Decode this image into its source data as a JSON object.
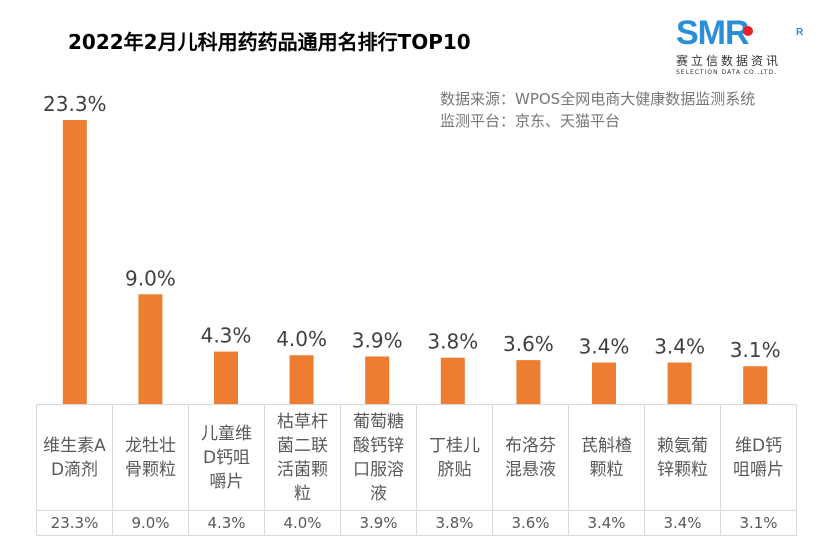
{
  "chart_data": {
    "type": "bar",
    "title": "2022年2月儿科用药药品通用名排行TOP10",
    "categories": [
      "维生素AD滴剂",
      "龙牡壮骨颗粒",
      "儿童维D钙咀嚼片",
      "枯草杆菌二联活菌颗粒",
      "葡萄糖酸钙锌口服溶液",
      "丁桂儿脐贴",
      "布洛芬混悬液",
      "芪斛楂颗粒",
      "赖氨葡锌颗粒",
      "维D钙咀嚼片"
    ],
    "values": [
      23.3,
      9.0,
      4.3,
      4.0,
      3.9,
      3.8,
      3.6,
      3.4,
      3.4,
      3.1
    ],
    "labels": [
      "23.3%",
      "9.0%",
      "4.3%",
      "4.0%",
      "3.9%",
      "3.8%",
      "3.6%",
      "3.4%",
      "3.4%",
      "3.1%"
    ],
    "bar_color": "#ed7d31",
    "grid": false,
    "data_table": true
  },
  "source_lines": [
    "数据来源：WPOS全网电商大健康数据监测系统",
    "监测平台：京东、天猫平台"
  ],
  "logo": {
    "text": "SMR",
    "cn": "赛立信数据资讯",
    "en": "SELECTION DATA CO.,LTD.",
    "reg": "R"
  }
}
